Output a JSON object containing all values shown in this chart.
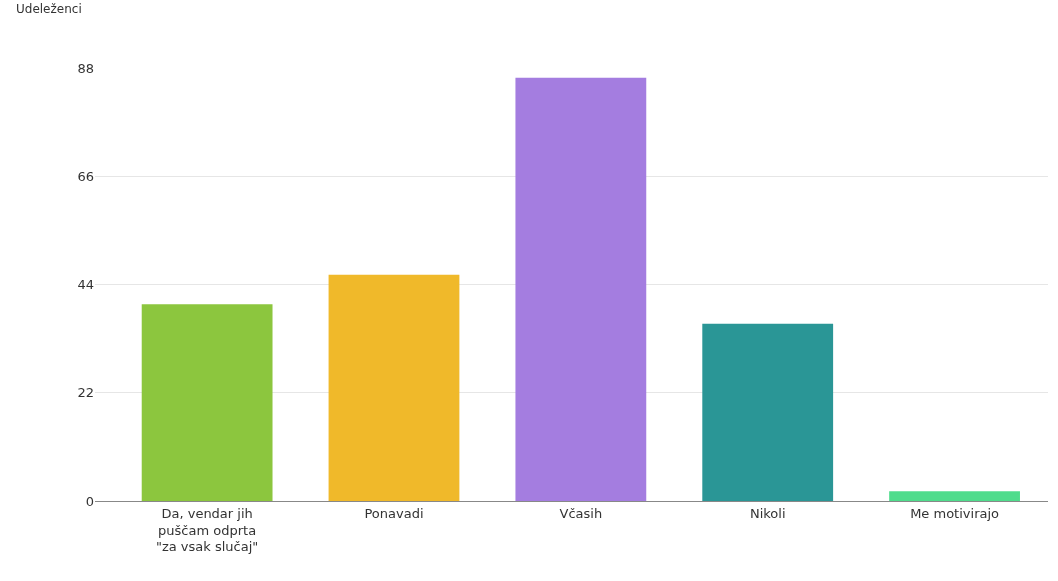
{
  "chart_data": {
    "type": "bar",
    "ylabel": "Udeleženci",
    "categories": [
      "Da, vendar jih puščam odprta \"za vsak slučaj\"",
      "Ponavadi",
      "Včasih",
      "Nikoli",
      "Me motivirajo"
    ],
    "values": [
      40,
      46,
      86,
      36,
      2
    ],
    "colors": [
      "#8cc63e",
      "#f0b92a",
      "#a47de0",
      "#2a9696",
      "#4fdc8c"
    ],
    "ylim": [
      0,
      88
    ],
    "yticks": [
      0,
      22,
      44,
      66,
      88
    ],
    "grid": "y"
  }
}
